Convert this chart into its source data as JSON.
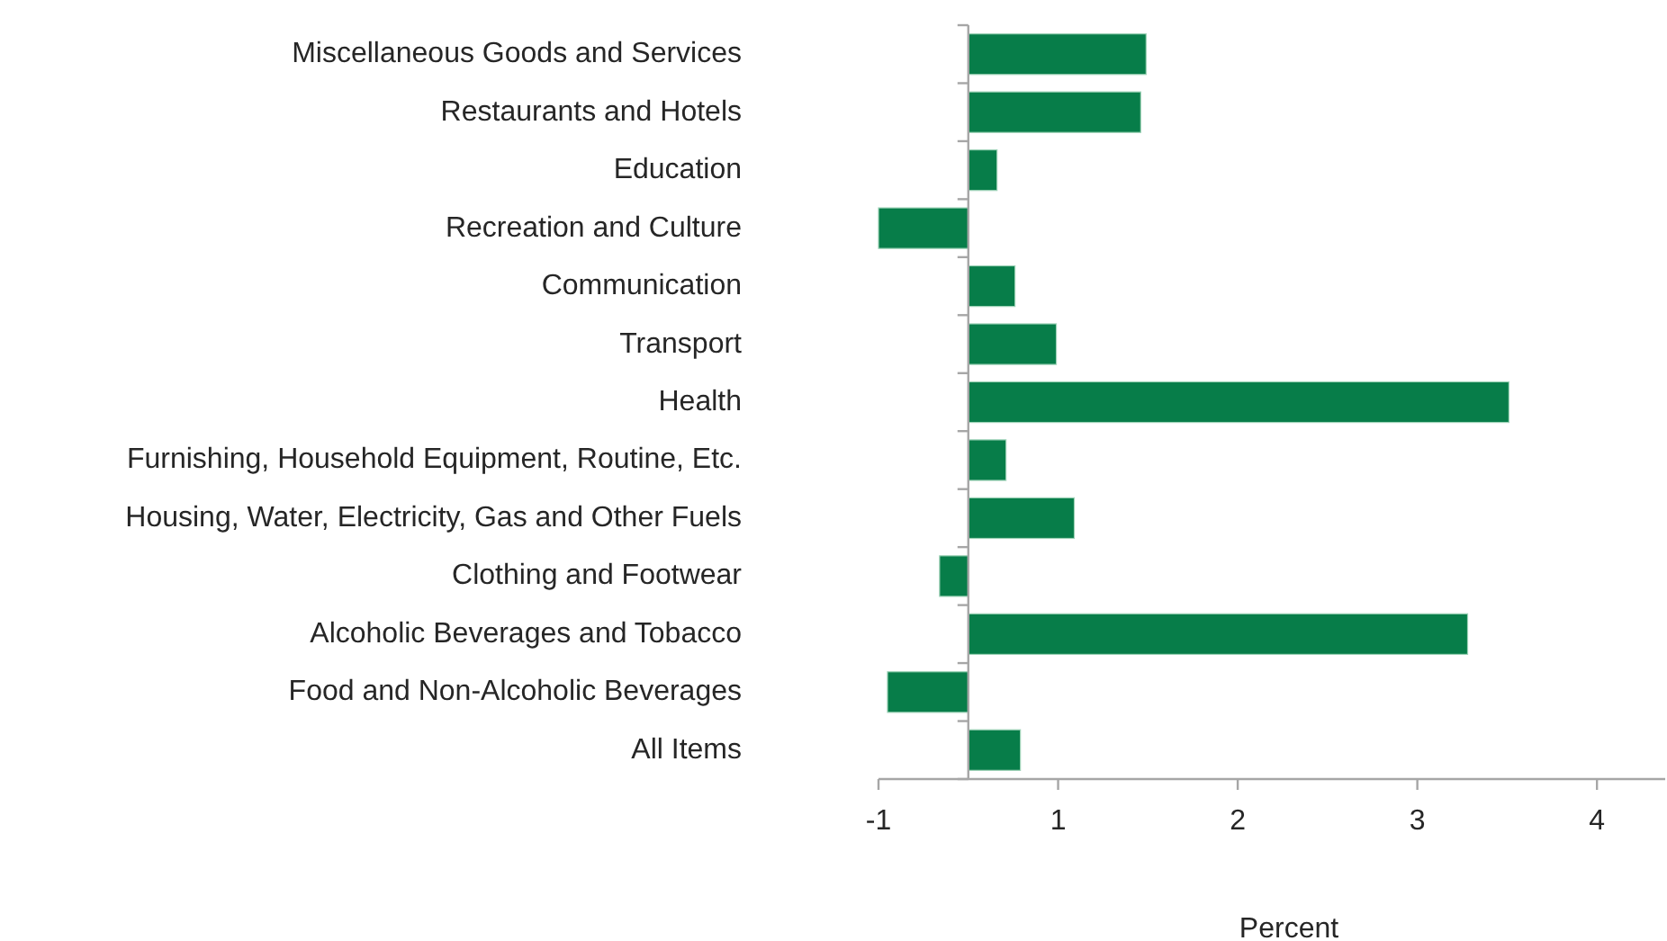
{
  "chart_data": {
    "type": "bar",
    "orientation": "horizontal",
    "xlabel": "Percent",
    "categories": [
      "Miscellaneous Goods and Services",
      "Restaurants and Hotels",
      "Education",
      "Recreation and Culture",
      "Communication",
      "Transport",
      "Health",
      "Furnishing, Household Equipment, Routine, Etc.",
      "Housing, Water, Electricity, Gas and Other Fuels",
      "Clothing and Footwear",
      "Alcoholic Beverages and Tobacco",
      "Food and Non-Alcoholic Beverages",
      "All Items"
    ],
    "values": [
      0.99,
      0.96,
      0.16,
      -0.5,
      0.26,
      0.49,
      3.01,
      0.21,
      0.59,
      -0.16,
      2.78,
      -0.45,
      0.29
    ],
    "color": "#077d49",
    "xlim": [
      -0.5,
      3.88
    ],
    "xticks": [
      {
        "value": -0.5,
        "label": "-1"
      },
      {
        "value": 0.5,
        "label": "1"
      },
      {
        "value": 1.5,
        "label": "2"
      },
      {
        "value": 2.5,
        "label": "3"
      },
      {
        "value": 3.5,
        "label": "4"
      }
    ],
    "grid": false
  }
}
